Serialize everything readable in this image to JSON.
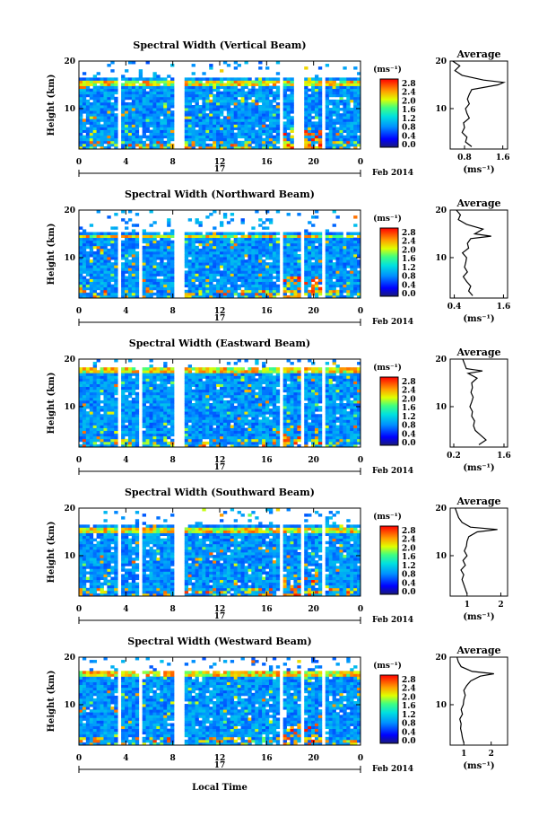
{
  "figure": {
    "xlabel": "Local Time",
    "date_label": "Feb 2014",
    "day_label": "17",
    "ylabel": "Height (km)",
    "unit_label": "(ms⁻¹)",
    "avg_title": "Average",
    "avg_xlabel": "(ms⁻¹)"
  },
  "chart_data": [
    {
      "type": "heatmap",
      "title": "Spectral Width (Vertical Beam)",
      "xlabel": "Local Time",
      "ylabel": "Height (km)",
      "x_ticks": [
        "0",
        "4",
        "8",
        "12",
        "16",
        "20",
        "0"
      ],
      "x_range": [
        0,
        24
      ],
      "y_ticks": [
        "20",
        "10"
      ],
      "y_range": [
        1.5,
        20
      ],
      "colorbar": {
        "unit": "(ms⁻¹)",
        "ticks": [
          "2.8",
          "2.4",
          "2.0",
          "1.6",
          "1.2",
          "0.8",
          "0.4",
          "0.0"
        ],
        "range": [
          0,
          3.0
        ]
      },
      "data_gaps_hours": [
        3.4,
        8.4,
        8.7,
        17.2,
        18.6,
        19.1,
        20.8
      ],
      "high_width_layer_km": 15.5,
      "average_profile": {
        "title": "Average",
        "xlabel": "(ms⁻¹)",
        "x_ticks": [
          "0.8",
          "1.6"
        ],
        "x_range": [
          0.5,
          1.7
        ],
        "y_ticks": [
          "20",
          "10"
        ],
        "y_range": [
          1.5,
          20
        ],
        "height_km": [
          2,
          3,
          4,
          5,
          6,
          7,
          8,
          9,
          10,
          11,
          12,
          13,
          14,
          15,
          15.5,
          16,
          17,
          18,
          19,
          20
        ],
        "width_ms": [
          0.95,
          0.82,
          0.85,
          0.75,
          0.8,
          0.78,
          0.9,
          0.85,
          0.82,
          0.9,
          0.86,
          0.9,
          0.95,
          1.5,
          1.62,
          1.2,
          0.75,
          0.6,
          0.7,
          0.55
        ]
      }
    },
    {
      "type": "heatmap",
      "title": "Spectral Width (Northward Beam)",
      "xlabel": "Local Time",
      "ylabel": "Height (km)",
      "x_ticks": [
        "0",
        "4",
        "8",
        "12",
        "16",
        "20",
        "0"
      ],
      "x_range": [
        0,
        24
      ],
      "y_ticks": [
        "20",
        "10"
      ],
      "y_range": [
        1.5,
        20
      ],
      "colorbar": {
        "unit": "(ms⁻¹)",
        "ticks": [
          "2.8",
          "2.4",
          "2.0",
          "1.6",
          "1.2",
          "0.8",
          "0.4",
          "0.0"
        ],
        "range": [
          0,
          3.0
        ]
      },
      "data_gaps_hours": [
        3.4,
        5.3,
        8.4,
        8.7,
        17.2,
        19.1,
        20.8
      ],
      "high_width_layer_km": 14.5,
      "average_profile": {
        "title": "Average",
        "xlabel": "(ms⁻¹)",
        "x_ticks": [
          "0.4",
          "1.6"
        ],
        "x_range": [
          0.3,
          1.7
        ],
        "y_ticks": [
          "20",
          "10"
        ],
        "y_range": [
          1.5,
          20
        ],
        "height_km": [
          2,
          3,
          4,
          5,
          6,
          7,
          8,
          9,
          10,
          11,
          12,
          13,
          14,
          14.5,
          15,
          16,
          17,
          18,
          19,
          20
        ],
        "width_ms": [
          0.85,
          0.75,
          0.8,
          0.7,
          0.62,
          0.72,
          0.65,
          0.68,
          0.7,
          0.6,
          0.75,
          0.72,
          0.8,
          1.3,
          0.9,
          1.1,
          0.7,
          0.5,
          0.55,
          0.45
        ]
      }
    },
    {
      "type": "heatmap",
      "title": "Spectral Width (Eastward Beam)",
      "xlabel": "Local Time",
      "ylabel": "Height (km)",
      "x_ticks": [
        "0",
        "4",
        "8",
        "12",
        "16",
        "20",
        "0"
      ],
      "x_range": [
        0,
        24
      ],
      "y_ticks": [
        "20",
        "10"
      ],
      "y_range": [
        1.5,
        20
      ],
      "colorbar": {
        "unit": "(ms⁻¹)",
        "ticks": [
          "2.8",
          "2.4",
          "2.0",
          "1.6",
          "1.2",
          "0.8",
          "0.4",
          "0.0"
        ],
        "range": [
          0,
          3.0
        ]
      },
      "data_gaps_hours": [
        3.4,
        5.3,
        8.4,
        8.7,
        17.2,
        19.1,
        20.8
      ],
      "high_width_layer_km": 17.5,
      "average_profile": {
        "title": "Average",
        "xlabel": "(ms⁻¹)",
        "x_ticks": [
          "0.2",
          "1.6"
        ],
        "x_range": [
          0.1,
          1.7
        ],
        "y_ticks": [
          "20",
          "10"
        ],
        "y_range": [
          1.5,
          20
        ],
        "height_km": [
          2,
          3,
          4,
          5,
          6,
          7,
          8,
          9,
          10,
          11,
          12,
          13,
          14,
          15,
          16,
          17,
          17.5,
          18,
          19,
          20
        ],
        "width_ms": [
          0.9,
          1.1,
          0.95,
          0.8,
          0.75,
          0.78,
          0.7,
          0.72,
          0.65,
          0.7,
          0.74,
          0.68,
          0.72,
          0.7,
          0.85,
          0.6,
          1.0,
          0.55,
          0.5,
          0.45
        ]
      }
    },
    {
      "type": "heatmap",
      "title": "Spectral Width (Southward Beam)",
      "xlabel": "Local Time",
      "ylabel": "Height (km)",
      "x_ticks": [
        "0",
        "4",
        "8",
        "12",
        "16",
        "20",
        "0"
      ],
      "x_range": [
        0,
        24
      ],
      "y_ticks": [
        "20",
        "10"
      ],
      "y_range": [
        1.5,
        20
      ],
      "colorbar": {
        "unit": "(ms⁻¹)",
        "ticks": [
          "2.8",
          "2.4",
          "2.0",
          "1.6",
          "1.2",
          "0.8",
          "0.4",
          "0.0"
        ],
        "range": [
          0,
          3.0
        ]
      },
      "data_gaps_hours": [
        3.4,
        5.3,
        8.4,
        8.7,
        17.2,
        19.1,
        20.8
      ],
      "high_width_layer_km": 15.5,
      "average_profile": {
        "title": "Average",
        "xlabel": "(ms⁻¹)",
        "x_ticks": [
          "1",
          "2"
        ],
        "x_range": [
          0.5,
          2.2
        ],
        "y_ticks": [
          "20",
          "10"
        ],
        "y_range": [
          1.5,
          20
        ],
        "height_km": [
          2,
          3,
          4,
          5,
          6,
          7,
          8,
          9,
          10,
          11,
          12,
          13,
          14,
          15,
          15.5,
          16,
          17,
          18,
          19,
          20
        ],
        "width_ms": [
          1.0,
          0.95,
          0.9,
          0.85,
          0.9,
          0.82,
          0.95,
          0.88,
          1.0,
          0.92,
          0.98,
          1.0,
          1.05,
          1.3,
          1.9,
          1.1,
          0.85,
          0.75,
          0.7,
          0.65
        ]
      }
    },
    {
      "type": "heatmap",
      "title": "Spectral Width (Westward Beam)",
      "xlabel": "Local Time",
      "ylabel": "Height (km)",
      "x_ticks": [
        "0",
        "4",
        "8",
        "12",
        "16",
        "20",
        "0"
      ],
      "x_range": [
        0,
        24
      ],
      "y_ticks": [
        "20",
        "10"
      ],
      "y_range": [
        1.5,
        20
      ],
      "colorbar": {
        "unit": "(ms⁻¹)",
        "ticks": [
          "2.8",
          "2.4",
          "2.0",
          "1.6",
          "1.2",
          "0.8",
          "0.4",
          "0.0"
        ],
        "range": [
          0,
          3.0
        ]
      },
      "data_gaps_hours": [
        3.4,
        5.3,
        8.4,
        8.7,
        17.2,
        19.1,
        20.8
      ],
      "high_width_layer_km": 16.5,
      "average_profile": {
        "title": "Average",
        "xlabel": "(ms⁻¹)",
        "x_ticks": [
          "1",
          "2"
        ],
        "x_range": [
          0.5,
          2.6
        ],
        "y_ticks": [
          "20",
          "10"
        ],
        "y_range": [
          1.5,
          20
        ],
        "height_km": [
          2,
          3,
          4,
          5,
          6,
          7,
          8,
          9,
          10,
          11,
          12,
          13,
          14,
          15,
          16,
          16.5,
          17,
          18,
          19,
          20
        ],
        "width_ms": [
          1.0,
          0.95,
          0.92,
          0.88,
          0.9,
          0.85,
          0.95,
          0.9,
          0.98,
          1.0,
          1.05,
          1.0,
          1.1,
          1.25,
          1.6,
          2.1,
          1.3,
          0.9,
          0.8,
          0.75
        ]
      }
    }
  ]
}
